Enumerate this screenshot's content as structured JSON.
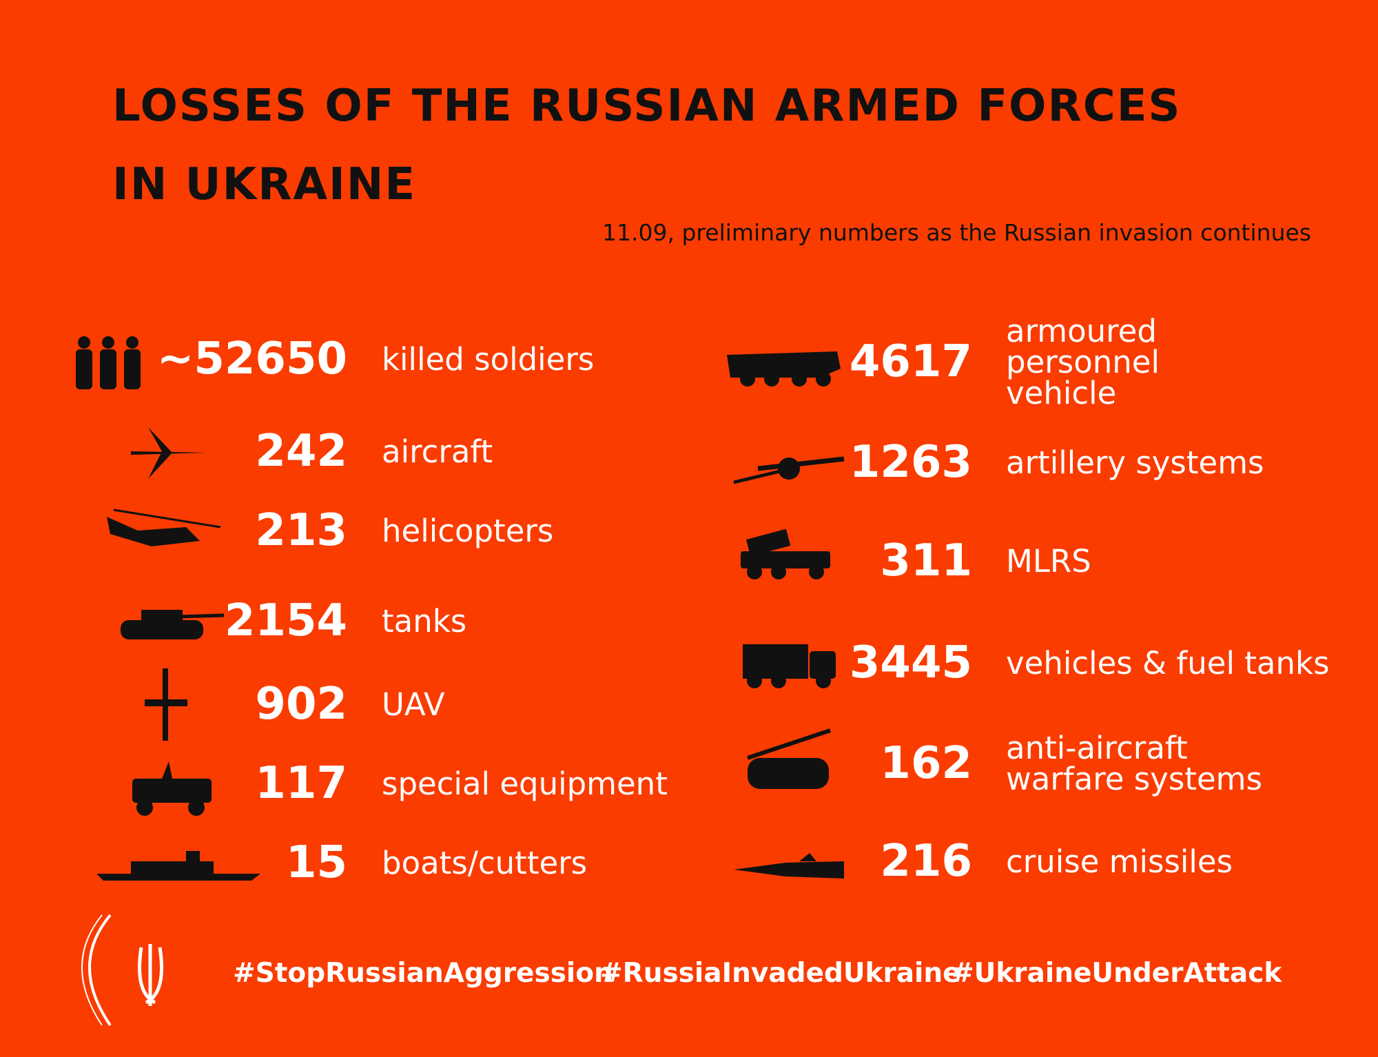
{
  "header": {
    "title_lines": [
      "LOSSES OF THE RUSSIAN ARMED FORCES",
      "IN UKRAINE"
    ],
    "subtitle": "11.09, preliminary numbers as the Russian invasion continues"
  },
  "left_items": [
    {
      "number": "~52650",
      "label_lines": [
        "killed soldiers"
      ]
    },
    {
      "number": "242",
      "label_lines": [
        "aircraft"
      ]
    },
    {
      "number": "213",
      "label_lines": [
        "helicopters"
      ]
    },
    {
      "number": "2154",
      "label_lines": [
        "tanks"
      ]
    },
    {
      "number": "902",
      "label_lines": [
        "UAV"
      ]
    },
    {
      "number": "117",
      "label_lines": [
        "special equipment"
      ]
    },
    {
      "number": "15",
      "label_lines": [
        "boats/cutters"
      ]
    }
  ],
  "right_items": [
    {
      "number": "4617",
      "label_lines": [
        "armoured",
        "personnel",
        "vehicle"
      ]
    },
    {
      "number": "1263",
      "label_lines": [
        "artillery systems"
      ]
    },
    {
      "number": "311",
      "label_lines": [
        "MLRS"
      ]
    },
    {
      "number": "3445",
      "label_lines": [
        "vehicles & fuel tanks"
      ]
    },
    {
      "number": "162",
      "label_lines": [
        "anti-aircraft",
        "warfare systems"
      ]
    },
    {
      "number": "216",
      "label_lines": [
        "cruise missiles"
      ]
    }
  ],
  "hashtags": [
    "#StopRussianAggression",
    "#RussiaInvadedUkraine",
    "#UkraineUnderAttack"
  ]
}
